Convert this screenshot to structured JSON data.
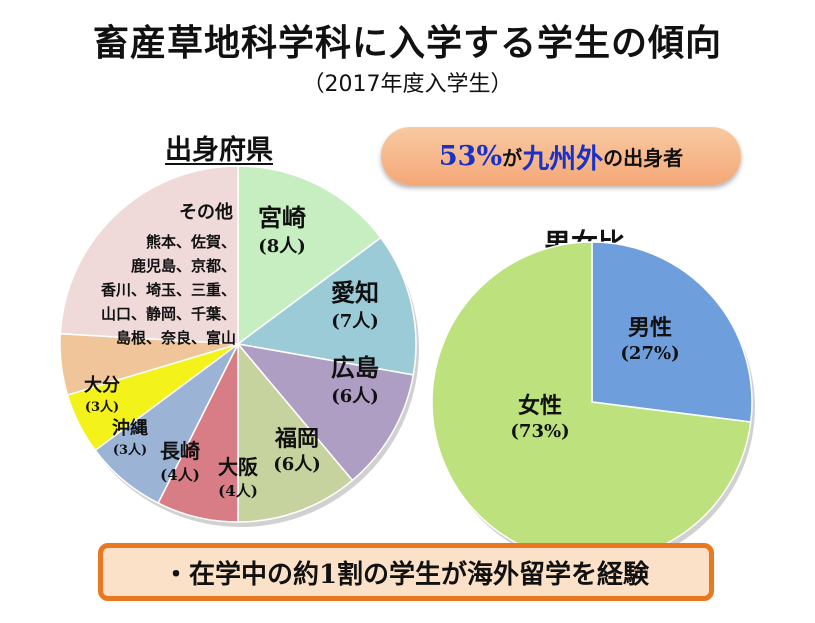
{
  "header": {
    "title": "畜産草地科学科に入学する学生の傾向",
    "subtitle": "（2017年度入学生）"
  },
  "callout": {
    "percent": "53%",
    "particle": "が",
    "region": "九州外",
    "suffix": "の出身者"
  },
  "note": "・在学中の約1割の学生が海外留学を経験",
  "colors": {
    "miyazaki": "#c6eec1",
    "aichi": "#9ccbd8",
    "hiroshima": "#ae9ec4",
    "fukuoka": "#c6d39f",
    "osaka": "#d87d86",
    "nagasaki": "#9bb4d6",
    "okinawa": "#f4f21b",
    "oita": "#f1c59a",
    "other": "#efd9d9",
    "male": "#6f9edc",
    "female": "#bde17c",
    "callout_blue": "#1a31c8",
    "banner_border": "#ea7722"
  },
  "chart_data": [
    {
      "type": "pie",
      "title": "出身府県",
      "start_angle_deg": 0,
      "direction": "clockwise",
      "slices": [
        {
          "key": "miyazaki",
          "label": "宮崎",
          "value_label": "(8人)",
          "value": 8
        },
        {
          "key": "aichi",
          "label": "愛知",
          "value_label": "(7人)",
          "value": 7
        },
        {
          "key": "hiroshima",
          "label": "広島",
          "value_label": "(6人)",
          "value": 6
        },
        {
          "key": "fukuoka",
          "label": "福岡",
          "value_label": "(6人)",
          "value": 6
        },
        {
          "key": "osaka",
          "label": "大阪",
          "value_label": "(4人)",
          "value": 4
        },
        {
          "key": "nagasaki",
          "label": "長崎",
          "value_label": "(4人)",
          "value": 4
        },
        {
          "key": "okinawa",
          "label": "沖縄",
          "value_label": "(3人)",
          "value": 3
        },
        {
          "key": "oita",
          "label": "大分",
          "value_label": "(3人)",
          "value": 3
        },
        {
          "key": "other",
          "label": "その他",
          "value_label_lines": [
            "熊本、佐賀、",
            "鹿児島、京都、",
            "香川、埼玉、三重、",
            "山口、静岡、千葉、",
            "島根、奈良、富山"
          ],
          "value": 13
        }
      ]
    },
    {
      "type": "pie",
      "title": "男女比",
      "start_angle_deg": 0,
      "direction": "clockwise",
      "slices": [
        {
          "key": "male",
          "label": "男性",
          "value_label": "(27%)",
          "value": 27
        },
        {
          "key": "female",
          "label": "女性",
          "value_label": "(73%)",
          "value": 73
        }
      ]
    }
  ]
}
